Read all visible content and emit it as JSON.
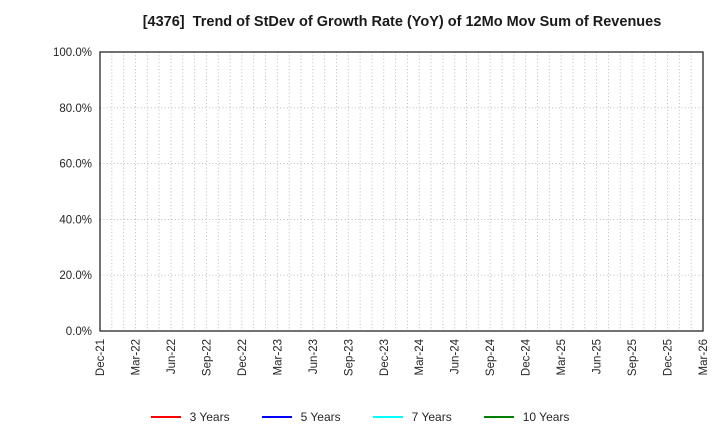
{
  "chart_data": {
    "type": "line",
    "title": "[4376]  Trend of StDev of Growth Rate (YoY) of 12Mo Mov Sum of Revenues",
    "x_tick_labels": [
      "Dec-21",
      "Mar-22",
      "Jun-22",
      "Sep-22",
      "Dec-22",
      "Mar-23",
      "Jun-23",
      "Sep-23",
      "Dec-23",
      "Mar-24",
      "Jun-24",
      "Sep-24",
      "Dec-24",
      "Mar-25",
      "Jun-25",
      "Sep-25",
      "Dec-25",
      "Mar-26"
    ],
    "y_tick_labels": [
      "0.0%",
      "20.0%",
      "40.0%",
      "60.0%",
      "80.0%",
      "100.0%"
    ],
    "ylim": [
      0,
      100
    ],
    "xlabel": "",
    "ylabel": "",
    "grid": true,
    "x_minor_gridlines_per_major": 3,
    "legend_position": "bottom",
    "series": [
      {
        "name": "3 Years",
        "color": "#ff0000",
        "values": []
      },
      {
        "name": "5 Years",
        "color": "#0000ff",
        "values": []
      },
      {
        "name": "7 Years",
        "color": "#00ffff",
        "values": []
      },
      {
        "name": "10 Years",
        "color": "#008000",
        "values": []
      }
    ]
  },
  "colors": {
    "background": "#ffffff",
    "axis_border": "#262626",
    "gridline": "#b3b3b3",
    "tick_text": "#262626",
    "title_text": "#1a1a1a"
  }
}
